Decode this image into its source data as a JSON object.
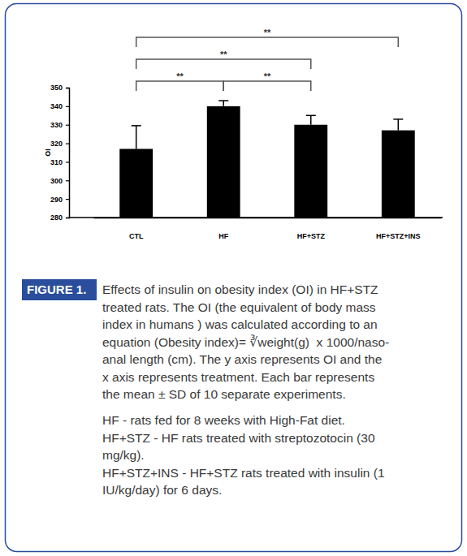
{
  "chart_data": {
    "type": "bar",
    "categories": [
      "CTL",
      "HF",
      "HF+STZ",
      "HF+STZ+INS"
    ],
    "values": [
      317,
      340,
      330,
      327
    ],
    "errors": [
      12.5,
      3,
      5,
      6
    ],
    "color": "#000000",
    "ylabel": "OI",
    "ylim": [
      280,
      350
    ],
    "yticks": [
      280,
      290,
      300,
      310,
      320,
      330,
      340,
      350
    ],
    "annotations": [
      {
        "from": 0,
        "to": 1,
        "text": "**"
      },
      {
        "from": 1,
        "to": 2,
        "text": "**"
      },
      {
        "from": 0,
        "to": 2,
        "text": "**"
      },
      {
        "from": 0,
        "to": 3,
        "text": "**"
      }
    ]
  },
  "caption": {
    "label": "FIGURE 1.",
    "lines": [
      "Effects of insulin on obesity index (OI) in HF+STZ",
      "treated rats. The OI (the equivalent of body mass",
      "index in humans ) was calculated according to an",
      "equation (Obesity index)= ∛weight(g)  x 1000/naso-",
      "anal length (cm). The y axis represents OI and the",
      "x axis represents treatment. Each bar represents",
      "the mean ± SD of 10 separate experiments."
    ],
    "notes": [
      "HF - rats fed for 8 weeks with High-Fat diet.",
      "HF+STZ - HF rats treated with streptozotocin (30",
      "mg/kg).",
      "HF+STZ+INS - HF+STZ rats treated with insulin (1",
      "IU/kg/day) for 6 days."
    ]
  }
}
